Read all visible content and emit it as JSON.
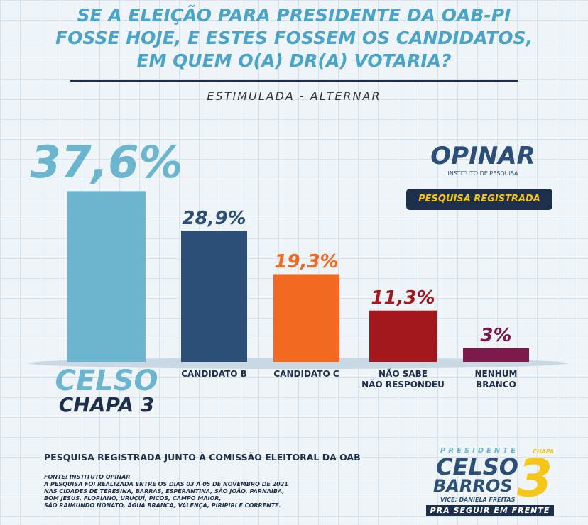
{
  "chart_data": {
    "type": "bar",
    "title": "SE A ELEIÇÃO PARA PRESIDENTE DA OAB-PI\nFOSSE HOJE, E ESTES FOSSEM OS CANDIDATOS,\nEM QUEM O(A) DR(A) VOTARIA?",
    "subtitle": "ESTIMULADA - ALTERNAR",
    "categories": [
      "CELSO\nCHAPA 3",
      "CANDIDATO B",
      "CANDIDATO C",
      "NÃO SABE\nNÃO RESPONDEU",
      "NENHUM\nBRANCO"
    ],
    "values": [
      37.6,
      28.9,
      19.3,
      11.3,
      3
    ],
    "value_labels": [
      "37,6%",
      "28,9%",
      "19,3%",
      "11,3%",
      "3%"
    ],
    "colors": [
      "#6cb5cf",
      "#2b4f77",
      "#f26a21",
      "#a3181d",
      "#7c1a4b"
    ]
  },
  "institute": {
    "name": "OPINAR",
    "tagline": "INSTITUTO DE PESQUISA",
    "badge": "PESQUISA REGISTRADA"
  },
  "footer": {
    "note": "PESQUISA REGISTRADA JUNTO À COMISSÃO ELEITORAL DA OAB",
    "source_lines": [
      "FONTE: INSTITUTO OPINAR",
      "A PESQUISA FOI REALIZADA ENTRE OS DIAS 03 A 05 DE NOVEMBRO DE 2021",
      "NAS CIDADES DE TERESINA, BARRAS, ESPERANTINA, SÃO JOÃO, PARNAÍBA,",
      "BOM JESUS, FLORIANO, URUÇUÍ, PICOS, CAMPO MAIOR,",
      "SÃO RAIMUNDO NONATO, ÁGUA BRANCA, VALENÇA, PIRIPIRI E CORRENTE."
    ]
  },
  "campaign": {
    "role": "PRESIDENTE",
    "chapa": "CHAPA",
    "first": "CELSO",
    "last": "BARROS",
    "number": "3",
    "vice": "VICE: DANIELA FREITAS",
    "slogan": "PRA SEGUIR EM FRENTE"
  }
}
